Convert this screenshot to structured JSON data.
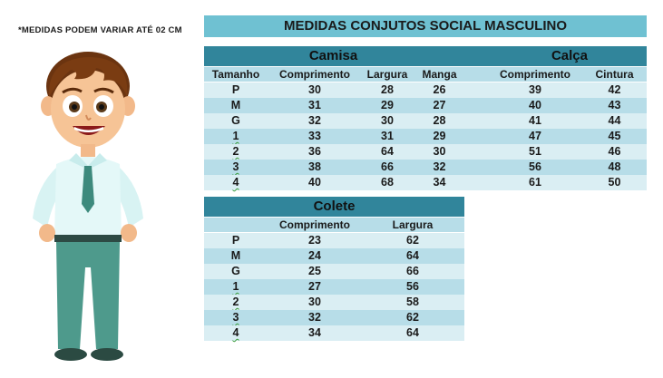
{
  "note": "*MEDIDAS PODEM VARIAR ATÉ 02 CM",
  "title": "MEDIDAS CONJUTOS SOCIAL MASCULINO",
  "camisa": {
    "header": "Camisa",
    "columns": [
      "Tamanho",
      "Comprimento",
      "Largura",
      "Manga"
    ],
    "rows": [
      [
        "P",
        "30",
        "28",
        "26"
      ],
      [
        "M",
        "31",
        "29",
        "27"
      ],
      [
        "G",
        "32",
        "30",
        "28"
      ],
      [
        "1",
        "33",
        "31",
        "29"
      ],
      [
        "2",
        "36",
        "64",
        "30"
      ],
      [
        "3",
        "38",
        "66",
        "32"
      ],
      [
        "4",
        "40",
        "68",
        "34"
      ]
    ]
  },
  "calca": {
    "header": "Calça",
    "columns": [
      "Comprimento",
      "Cintura"
    ],
    "rows": [
      [
        "39",
        "42"
      ],
      [
        "40",
        "43"
      ],
      [
        "41",
        "44"
      ],
      [
        "47",
        "45"
      ],
      [
        "51",
        "46"
      ],
      [
        "56",
        "48"
      ],
      [
        "61",
        "50"
      ]
    ]
  },
  "colete": {
    "header": "Colete",
    "columns": [
      "Comprimento",
      "Largura"
    ],
    "rows": [
      [
        "P",
        "23",
        "62"
      ],
      [
        "M",
        "24",
        "64"
      ],
      [
        "G",
        "25",
        "66"
      ],
      [
        "1",
        "27",
        "56"
      ],
      [
        "2",
        "30",
        "58"
      ],
      [
        "3",
        "32",
        "62"
      ],
      [
        "4",
        "34",
        "64"
      ]
    ]
  },
  "colors": {
    "title_bg": "#6fc1d2",
    "section_bg": "#31859b",
    "row_light": "#daeef3",
    "row_dark": "#b7dde8"
  }
}
